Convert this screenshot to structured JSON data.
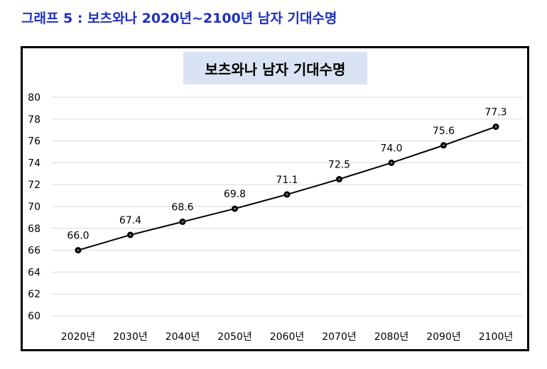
{
  "caption": "그래프 5 : 보츠와나 2020년~2100년 남자 기대수명",
  "colors": {
    "caption": "#1f2fbf",
    "title_bg": "#dae3f3",
    "line": "#000000",
    "grid": "#d9d9d9"
  },
  "chart_data": {
    "type": "line",
    "title": "보츠와나 남자 기대수명",
    "categories": [
      "2020년",
      "2030년",
      "2040년",
      "2050년",
      "2060년",
      "2070년",
      "2080년",
      "2090년",
      "2100년"
    ],
    "series": [
      {
        "values": [
          66.0,
          67.4,
          68.6,
          69.8,
          71.1,
          72.5,
          74.0,
          75.6,
          77.3
        ],
        "labels": [
          "66.0",
          "67.4",
          "68.6",
          "69.8",
          "71.1",
          "72.5",
          "74.0",
          "75.6",
          "77.3"
        ]
      }
    ],
    "ylim": [
      60,
      80
    ],
    "yticks": [
      "60",
      "62",
      "64",
      "66",
      "68",
      "70",
      "72",
      "74",
      "76",
      "78",
      "80"
    ],
    "grid": true,
    "legend": "none",
    "xlabel": "",
    "ylabel": ""
  }
}
